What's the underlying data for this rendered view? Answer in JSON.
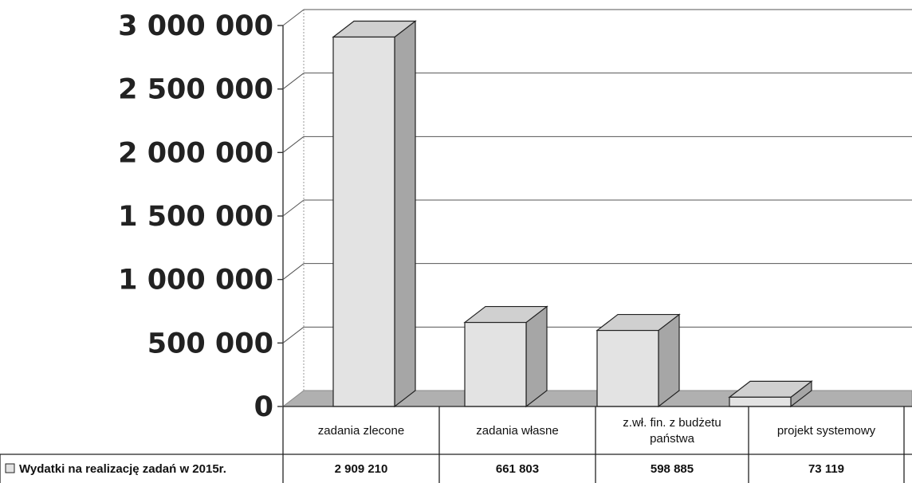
{
  "chart_data": {
    "type": "bar",
    "categories": [
      [
        "zadania zlecone"
      ],
      [
        "zadania własne"
      ],
      [
        "z.wł. fin. z budżetu",
        "państwa"
      ],
      [
        "projekt systemowy"
      ]
    ],
    "series": [
      {
        "name": "Wydatki na realizację zadań w 2015r.",
        "values": [
          2909210,
          661803,
          598885,
          73119
        ],
        "value_labels": [
          "2 909 210",
          "661 803",
          "598 885",
          "73 119"
        ]
      }
    ],
    "y_ticks": [
      "0",
      "500 000",
      "1 000 000",
      "1 500 000",
      "2 000 000",
      "2 500 000",
      "3 000 000"
    ],
    "ylim": [
      0,
      3000000
    ],
    "grid": true,
    "legend": "data-table",
    "style": "3d-column",
    "colors": {
      "bar_front": "#e3e3e3",
      "bar_side": "#a6a6a6",
      "bar_top": "#d0d0d0",
      "floor": "#b0b0b0",
      "grid": "#555555"
    }
  }
}
